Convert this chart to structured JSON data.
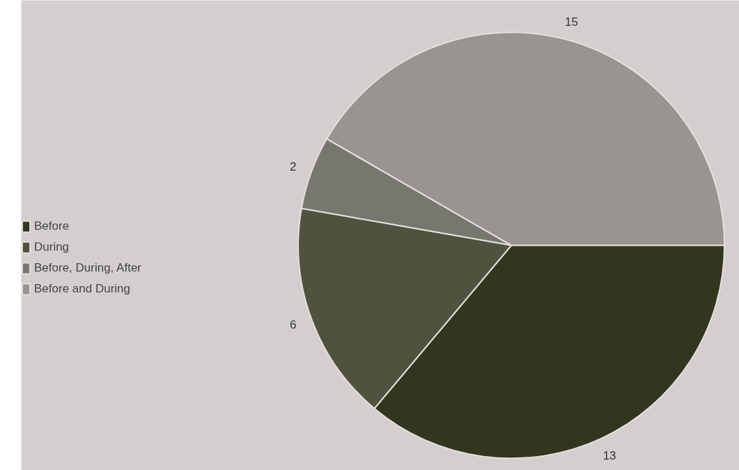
{
  "chart_data": {
    "type": "pie",
    "categories": [
      "Before",
      "During",
      "Before, During, After",
      "Before and During"
    ],
    "values": [
      13,
      6,
      2,
      15
    ],
    "colors": [
      "#33361f",
      "#50523f",
      "#777770",
      "#989590"
    ],
    "data_labels": true,
    "legend": "left"
  }
}
